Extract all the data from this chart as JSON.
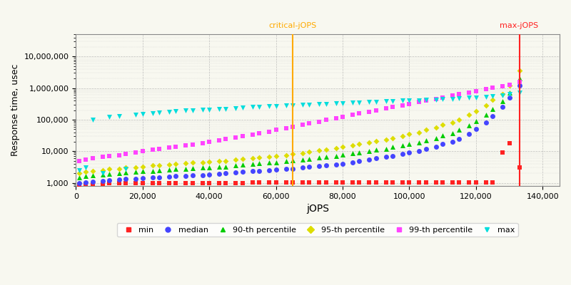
{
  "xlabel": "jOPS",
  "ylabel": "Response time, usec",
  "critical_jops": 65000,
  "max_jops": 133000,
  "xlim": [
    0,
    145000
  ],
  "ylim_log": [
    800,
    50000000
  ],
  "series": {
    "min": {
      "color": "#ff2222",
      "marker": "s",
      "markersize": 5,
      "linestyle": "none",
      "jops": [
        1000,
        3000,
        5000,
        8000,
        10000,
        13000,
        15000,
        18000,
        20000,
        23000,
        25000,
        28000,
        30000,
        33000,
        35000,
        38000,
        40000,
        43000,
        45000,
        48000,
        50000,
        53000,
        55000,
        58000,
        60000,
        63000,
        65000,
        68000,
        70000,
        73000,
        75000,
        78000,
        80000,
        83000,
        85000,
        88000,
        90000,
        93000,
        95000,
        98000,
        100000,
        103000,
        105000,
        108000,
        110000,
        113000,
        115000,
        118000,
        120000,
        123000,
        125000,
        128000,
        130000,
        133000
      ],
      "rt": [
        900,
        920,
        930,
        940,
        950,
        955,
        960,
        965,
        970,
        975,
        980,
        985,
        990,
        992,
        994,
        995,
        996,
        997,
        998,
        999,
        1000,
        1001,
        1002,
        1003,
        1004,
        1005,
        1006,
        1007,
        1008,
        1009,
        1010,
        1011,
        1012,
        1013,
        1014,
        1015,
        1016,
        1017,
        1018,
        1019,
        1020,
        1021,
        1022,
        1023,
        1024,
        1025,
        1026,
        1027,
        1028,
        1029,
        1030,
        9000,
        18000,
        3000
      ]
    },
    "median": {
      "color": "#4444ff",
      "marker": "o",
      "markersize": 5,
      "linestyle": "none",
      "jops": [
        1000,
        3000,
        5000,
        8000,
        10000,
        13000,
        15000,
        18000,
        20000,
        23000,
        25000,
        28000,
        30000,
        33000,
        35000,
        38000,
        40000,
        43000,
        45000,
        48000,
        50000,
        53000,
        55000,
        58000,
        60000,
        63000,
        65000,
        68000,
        70000,
        73000,
        75000,
        78000,
        80000,
        83000,
        85000,
        88000,
        90000,
        93000,
        95000,
        98000,
        100000,
        103000,
        105000,
        108000,
        110000,
        113000,
        115000,
        118000,
        120000,
        123000,
        125000,
        128000,
        130000,
        133000
      ],
      "rt": [
        1000,
        1050,
        1100,
        1150,
        1200,
        1250,
        1300,
        1350,
        1400,
        1450,
        1500,
        1550,
        1600,
        1650,
        1700,
        1750,
        1800,
        1900,
        2000,
        2100,
        2200,
        2300,
        2400,
        2500,
        2600,
        2700,
        2800,
        3000,
        3200,
        3400,
        3600,
        3800,
        4000,
        4500,
        5000,
        5500,
        6000,
        6500,
        7000,
        8000,
        9000,
        10000,
        12000,
        14000,
        17000,
        20000,
        25000,
        35000,
        50000,
        80000,
        130000,
        250000,
        500000,
        1200000
      ]
    },
    "p90": {
      "color": "#00cc00",
      "marker": "^",
      "markersize": 5,
      "linestyle": "none",
      "jops": [
        1000,
        3000,
        5000,
        8000,
        10000,
        13000,
        15000,
        18000,
        20000,
        23000,
        25000,
        28000,
        30000,
        33000,
        35000,
        38000,
        40000,
        43000,
        45000,
        48000,
        50000,
        53000,
        55000,
        58000,
        60000,
        63000,
        65000,
        68000,
        70000,
        73000,
        75000,
        78000,
        80000,
        83000,
        85000,
        88000,
        90000,
        93000,
        95000,
        98000,
        100000,
        103000,
        105000,
        108000,
        110000,
        113000,
        115000,
        118000,
        120000,
        123000,
        125000,
        128000,
        130000,
        133000
      ],
      "rt": [
        1500,
        1600,
        1700,
        1800,
        1900,
        2000,
        2100,
        2200,
        2300,
        2400,
        2500,
        2600,
        2700,
        2800,
        2900,
        3000,
        3100,
        3200,
        3300,
        3500,
        3700,
        3900,
        4100,
        4300,
        4500,
        4800,
        5100,
        5400,
        5800,
        6200,
        6700,
        7200,
        7800,
        8500,
        9200,
        10000,
        11000,
        12000,
        13500,
        15000,
        17000,
        19000,
        22000,
        26000,
        31000,
        38000,
        47000,
        65000,
        90000,
        140000,
        220000,
        380000,
        700000,
        2000000
      ]
    },
    "p95": {
      "color": "#dddd00",
      "marker": "D",
      "markersize": 4,
      "linestyle": "none",
      "jops": [
        1000,
        3000,
        5000,
        8000,
        10000,
        13000,
        15000,
        18000,
        20000,
        23000,
        25000,
        28000,
        30000,
        33000,
        35000,
        38000,
        40000,
        43000,
        45000,
        48000,
        50000,
        53000,
        55000,
        58000,
        60000,
        63000,
        65000,
        68000,
        70000,
        73000,
        75000,
        78000,
        80000,
        83000,
        85000,
        88000,
        90000,
        93000,
        95000,
        98000,
        100000,
        103000,
        105000,
        108000,
        110000,
        113000,
        115000,
        118000,
        120000,
        123000,
        125000,
        128000,
        130000,
        133000
      ],
      "rt": [
        2000,
        2200,
        2300,
        2500,
        2700,
        2800,
        3000,
        3100,
        3300,
        3500,
        3600,
        3800,
        4000,
        4100,
        4300,
        4500,
        4600,
        4800,
        5000,
        5300,
        5600,
        5900,
        6200,
        6600,
        7000,
        7500,
        8000,
        8700,
        9500,
        10500,
        11500,
        12500,
        14000,
        15500,
        17000,
        19000,
        21000,
        23500,
        26000,
        30000,
        35000,
        40000,
        48000,
        57000,
        68000,
        82000,
        100000,
        140000,
        190000,
        280000,
        420000,
        650000,
        1200000,
        3500000
      ]
    },
    "p99": {
      "color": "#ff44ff",
      "marker": "s",
      "markersize": 4,
      "linestyle": "none",
      "jops": [
        1000,
        3000,
        5000,
        8000,
        10000,
        13000,
        15000,
        18000,
        20000,
        23000,
        25000,
        28000,
        30000,
        33000,
        35000,
        38000,
        40000,
        43000,
        45000,
        48000,
        50000,
        53000,
        55000,
        58000,
        60000,
        63000,
        65000,
        68000,
        70000,
        73000,
        75000,
        78000,
        80000,
        83000,
        85000,
        88000,
        90000,
        93000,
        95000,
        98000,
        100000,
        103000,
        105000,
        108000,
        110000,
        113000,
        115000,
        118000,
        120000,
        123000,
        125000,
        128000,
        130000,
        133000
      ],
      "rt": [
        5000,
        5500,
        6000,
        6500,
        7000,
        7500,
        8000,
        9000,
        10000,
        11000,
        12000,
        13000,
        14000,
        15000,
        16000,
        18000,
        20000,
        22000,
        24000,
        27000,
        30000,
        33000,
        37000,
        42000,
        47000,
        53000,
        60000,
        68000,
        77000,
        87000,
        98000,
        110000,
        125000,
        140000,
        158000,
        178000,
        200000,
        225000,
        252000,
        285000,
        320000,
        360000,
        405000,
        455000,
        510000,
        575000,
        645000,
        720000,
        810000,
        910000,
        1020000,
        1150000,
        1300000,
        1600000
      ]
    },
    "max": {
      "color": "#00dddd",
      "marker": "v",
      "markersize": 5,
      "linestyle": "none",
      "jops": [
        1000,
        3000,
        5000,
        8000,
        10000,
        13000,
        15000,
        18000,
        20000,
        23000,
        25000,
        28000,
        30000,
        33000,
        35000,
        38000,
        40000,
        43000,
        45000,
        48000,
        50000,
        53000,
        55000,
        58000,
        60000,
        63000,
        65000,
        68000,
        70000,
        73000,
        75000,
        78000,
        80000,
        83000,
        85000,
        88000,
        90000,
        93000,
        95000,
        98000,
        100000,
        103000,
        105000,
        108000,
        110000,
        113000,
        115000,
        118000,
        120000,
        123000,
        125000,
        128000,
        130000,
        133000
      ],
      "rt": [
        2500,
        3000,
        100000,
        2000,
        120000,
        130000,
        2800,
        140000,
        150000,
        160000,
        170000,
        180000,
        190000,
        195000,
        200000,
        205000,
        210000,
        215000,
        220000,
        230000,
        240000,
        250000,
        260000,
        265000,
        270000,
        275000,
        280000,
        290000,
        300000,
        310000,
        315000,
        325000,
        335000,
        340000,
        350000,
        360000,
        370000,
        380000,
        385000,
        395000,
        405000,
        415000,
        425000,
        435000,
        445000,
        460000,
        470000,
        490000,
        510000,
        530000,
        560000,
        590000,
        630000,
        700000
      ]
    }
  },
  "legend_labels": [
    "min",
    "median",
    "90-th percentile",
    "95-th percentile",
    "99-th percentile",
    "max"
  ],
  "legend_colors": [
    "#ff2222",
    "#4444ff",
    "#00cc00",
    "#dddd00",
    "#ff44ff",
    "#00dddd"
  ],
  "legend_markers": [
    "s",
    "o",
    "^",
    "D",
    "s",
    "v"
  ],
  "critical_label": "critical-jOPS",
  "max_label": "max-jOPS",
  "critical_color": "#ffaa00",
  "max_color": "#ff2222",
  "bg_color": "#f8f8f0",
  "grid_color": "#aaaaaa"
}
